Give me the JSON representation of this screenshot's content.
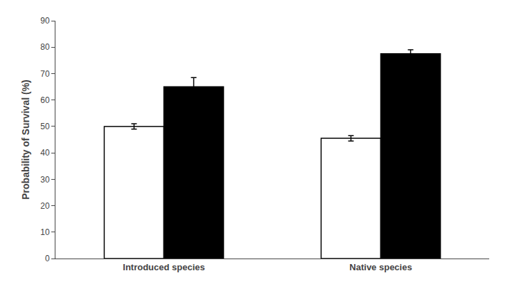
{
  "chart_data": {
    "type": "bar",
    "categories": [
      "Introduced species",
      "Native species"
    ],
    "series": [
      {
        "color": "#ffffff",
        "values": [
          50.0,
          45.5
        ],
        "errors": [
          1.0,
          1.0
        ]
      },
      {
        "color": "#000000",
        "values": [
          65.0,
          77.5
        ],
        "errors": [
          3.5,
          1.5
        ]
      }
    ],
    "ylabel": "Probability of Survival (%)",
    "ylim": [
      0,
      90
    ],
    "yticks": [
      0,
      10,
      20,
      30,
      40,
      50,
      60,
      70,
      80,
      90
    ],
    "grid": false
  }
}
